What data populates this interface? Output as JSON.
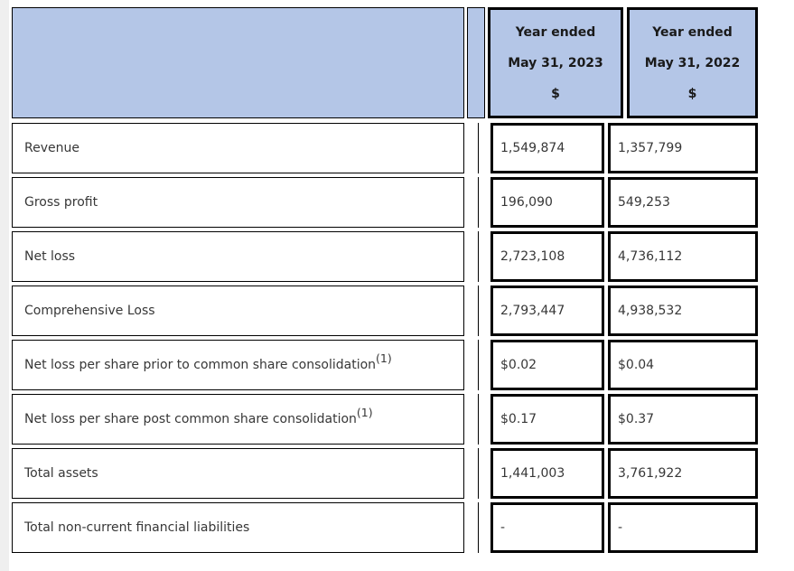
{
  "colors": {
    "header_bg": "#b4c6e7",
    "border": "#000000",
    "gutter_bg": "#efefef",
    "body_text": "#373737"
  },
  "table": {
    "header": {
      "col2023": {
        "line1": "Year ended",
        "line2": "May 31, 2023",
        "line3": "$"
      },
      "col2022": {
        "line1": "Year ended",
        "line2": "May 31, 2022",
        "line3": "$"
      }
    },
    "rows": [
      {
        "label": "Revenue",
        "sup": "",
        "y2023": "1,549,874",
        "y2022": "1,357,799"
      },
      {
        "label": "Gross profit",
        "sup": "",
        "y2023": "196,090",
        "y2022": "549,253"
      },
      {
        "label": "Net loss",
        "sup": "",
        "y2023": "2,723,108",
        "y2022": "4,736,112"
      },
      {
        "label": "Comprehensive Loss",
        "sup": "",
        "y2023": "2,793,447",
        "y2022": "4,938,532"
      },
      {
        "label": "Net loss per share prior to common share consolidation",
        "sup": "(1)",
        "y2023": "$0.02",
        "y2022": "$0.04"
      },
      {
        "label": "Net loss per share post common share consolidation",
        "sup": "(1)",
        "y2023": "$0.17",
        "y2022": "$0.37"
      },
      {
        "label": "Total assets",
        "sup": "",
        "y2023": "1,441,003",
        "y2022": "3,761,922"
      },
      {
        "label": "Total non-current financial liabilities",
        "sup": "",
        "y2023": "-",
        "y2022": "-"
      }
    ]
  }
}
